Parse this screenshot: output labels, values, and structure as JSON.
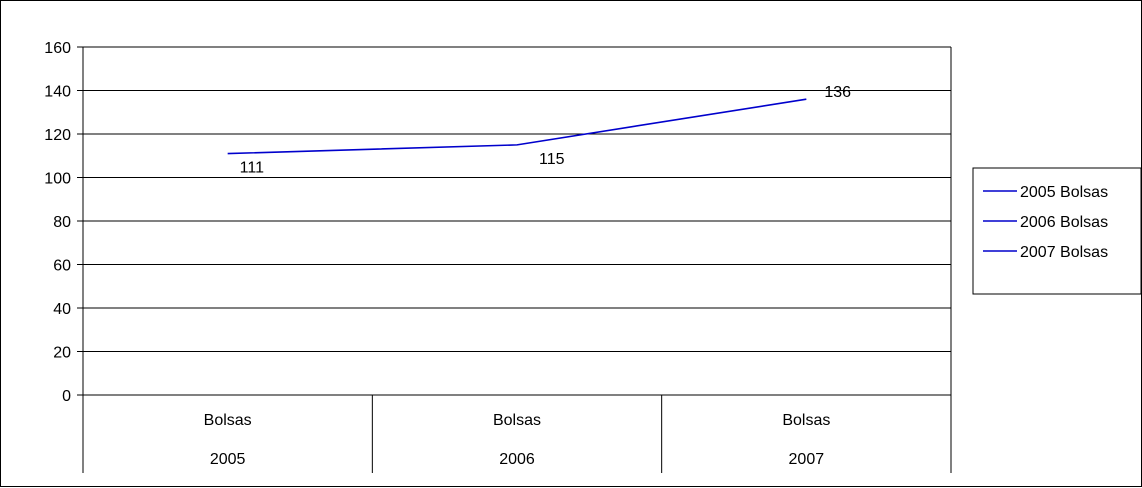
{
  "chart_data": {
    "type": "line",
    "categories": [
      {
        "label": "Bolsas",
        "group": "2005"
      },
      {
        "label": "Bolsas",
        "group": "2006"
      },
      {
        "label": "Bolsas",
        "group": "2007"
      }
    ],
    "series": [
      {
        "values": [
          111,
          115,
          136
        ],
        "color": "#0000cc"
      }
    ],
    "data_labels": [
      "111",
      "115",
      "136"
    ],
    "y_ticks": [
      0,
      20,
      40,
      60,
      80,
      100,
      120,
      140,
      160
    ],
    "ylim": [
      0,
      160
    ],
    "grid": true,
    "legend": {
      "position": "right",
      "entries": [
        "2005 Bolsas",
        "2006 Bolsas",
        "2007 Bolsas"
      ],
      "color": "#0000cc"
    }
  }
}
